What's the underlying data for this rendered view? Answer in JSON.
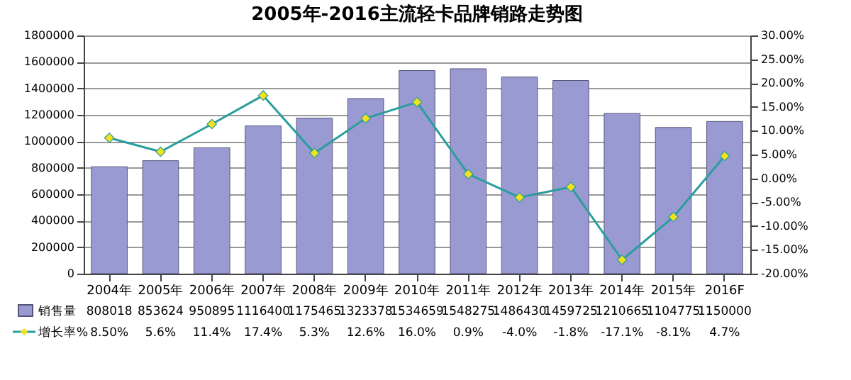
{
  "chart_data": {
    "type": "bar",
    "title": "2005年-2016主流轻卡品牌销路走势图",
    "categories": [
      "2004年",
      "2005年",
      "2006年",
      "2007年",
      "2008年",
      "2009年",
      "2010年",
      "2011年",
      "2012年",
      "2013年",
      "2014年",
      "2015年",
      "2016F"
    ],
    "series": [
      {
        "name": "销售量",
        "type": "bar",
        "color": "#9a9ad2",
        "values": [
          808018,
          853624,
          950895,
          1116400,
          1175465,
          1323378,
          1534659,
          1548275,
          1486430,
          1459725,
          1210665,
          1104775,
          1150000
        ],
        "value_labels": [
          "808018",
          "853624",
          "950895",
          "1116400",
          "1175465",
          "1323378",
          "1534659",
          "1548275",
          "1486430",
          "1459725",
          "1210665",
          "1104775",
          "1150000"
        ]
      },
      {
        "name": "增长率%",
        "type": "line",
        "axis": "y2",
        "color": "#2a9d9d",
        "marker": "diamond",
        "values": [
          8.5,
          5.6,
          11.4,
          17.4,
          5.3,
          12.6,
          16.0,
          0.9,
          -4.0,
          -1.8,
          -17.1,
          -8.1,
          4.7
        ],
        "value_labels": [
          "8.50%",
          "5.6%",
          "11.4%",
          "17.4%",
          "5.3%",
          "12.6%",
          "16.0%",
          "0.9%",
          "-4.0%",
          "-1.8%",
          "-17.1%",
          "-8.1%",
          "4.7%"
        ]
      }
    ],
    "ylim": [
      0,
      1800000
    ],
    "yticks": [
      0,
      200000,
      400000,
      600000,
      800000,
      1000000,
      1200000,
      1400000,
      1600000,
      1800000
    ],
    "y2lim": [
      -20,
      30
    ],
    "y2ticks": [
      {
        "value": -20,
        "label": "-20.00%"
      },
      {
        "value": -15,
        "label": "-15.00%"
      },
      {
        "value": -10,
        "label": "-10.00%"
      },
      {
        "value": -5,
        "label": "-5.00%"
      },
      {
        "value": 0,
        "label": "0.00%"
      },
      {
        "value": 5,
        "label": "5.00%"
      },
      {
        "value": 10,
        "label": "10.00%"
      },
      {
        "value": 15,
        "label": "15.00%"
      },
      {
        "value": 20,
        "label": "20.00%"
      },
      {
        "value": 25,
        "label": "25.00%"
      },
      {
        "value": 30,
        "label": "30.00%"
      }
    ],
    "grid": "y",
    "legend": "bottom left"
  }
}
